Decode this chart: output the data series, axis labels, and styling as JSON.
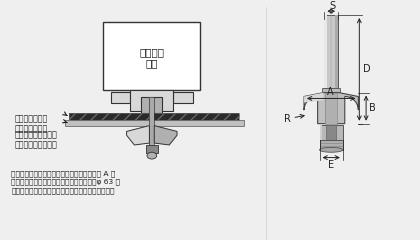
{
  "bg_color": "#efefef",
  "text_color": "#1a1a1a",
  "line_color": "#333333",
  "gray_light": "#d8d8d8",
  "gray_mid": "#b0b0b0",
  "gray_dark": "#888888",
  "black": "#111111",
  "white": "#ffffff",
  "title_router": "ルーター\n本体",
  "label_base": "ルーター本体の\nベースプレート",
  "label_sub": "サブベースプレート\nまたは自作プレート",
  "caption": "ルーター本体のベースプレート穴よりも刊径 A の\n方が大きい場合は、サブベースプレート（φ 63 ま\nで）または自作のプレートを取り付けてください。",
  "dim_S": "S",
  "dim_D": "D",
  "dim_A": "A",
  "dim_B": "B",
  "dim_R": "R",
  "dim_E": "E"
}
